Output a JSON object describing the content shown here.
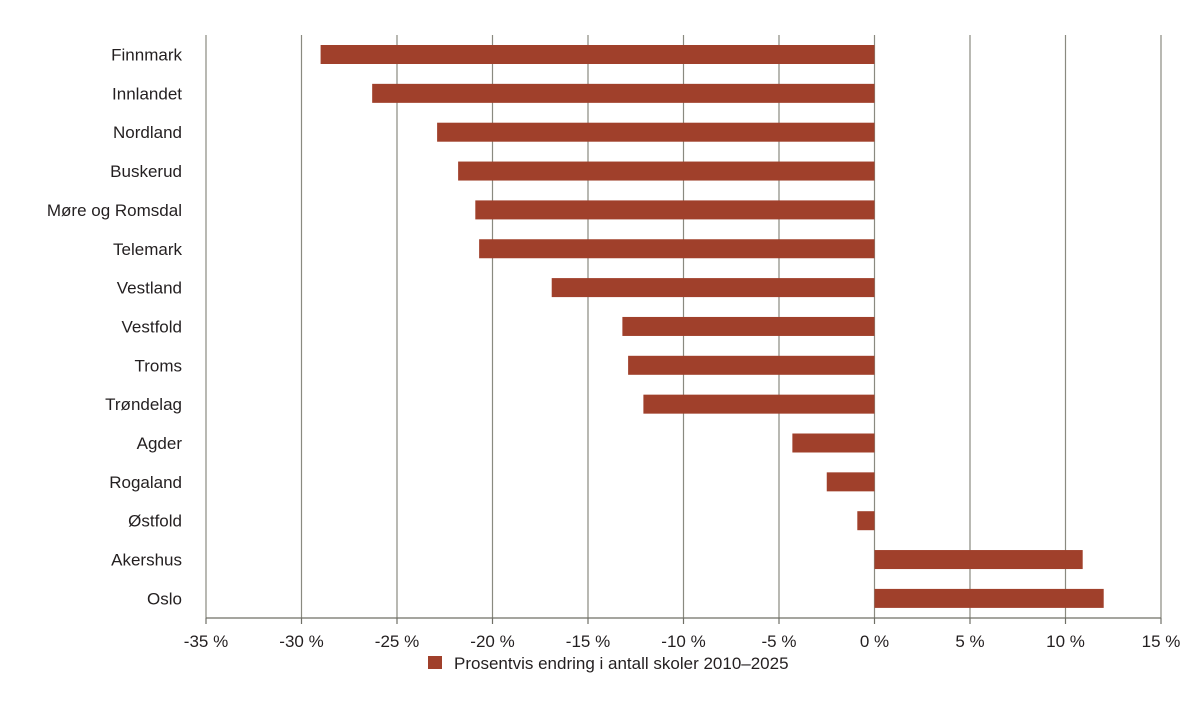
{
  "chart_data": {
    "type": "bar",
    "orientation": "horizontal",
    "categories": [
      "Finnmark",
      "Innlandet",
      "Nordland",
      "Buskerud",
      "Møre og Romsdal",
      "Telemark",
      "Vestland",
      "Vestfold",
      "Troms",
      "Trøndelag",
      "Agder",
      "Rogaland",
      "Østfold",
      "Akershus",
      "Oslo"
    ],
    "series": [
      {
        "name": "Prosentvis endring i antall skoler 2010–2025",
        "values": [
          -29.0,
          -26.3,
          -22.9,
          -21.8,
          -20.9,
          -20.7,
          -16.9,
          -13.2,
          -12.9,
          -12.1,
          -4.3,
          -2.5,
          -0.9,
          10.9,
          12.0
        ]
      }
    ],
    "xlim": [
      -35,
      15
    ],
    "xticks": [
      -35,
      -30,
      -25,
      -20,
      -15,
      -10,
      -5,
      0,
      5,
      10,
      15
    ],
    "xtick_labels": [
      "-35 %",
      "-30 %",
      "-25 %",
      "-20 %",
      "-15 %",
      "-10 %",
      "-5 %",
      "0 %",
      "5 %",
      "10 %",
      "15 %"
    ],
    "grid": "vertical",
    "legend_position": "bottom-center",
    "colors": {
      "bar": "#a0402b",
      "grid": "#8a8a80",
      "axis": "#6f6f66",
      "text": "#231f20"
    }
  }
}
